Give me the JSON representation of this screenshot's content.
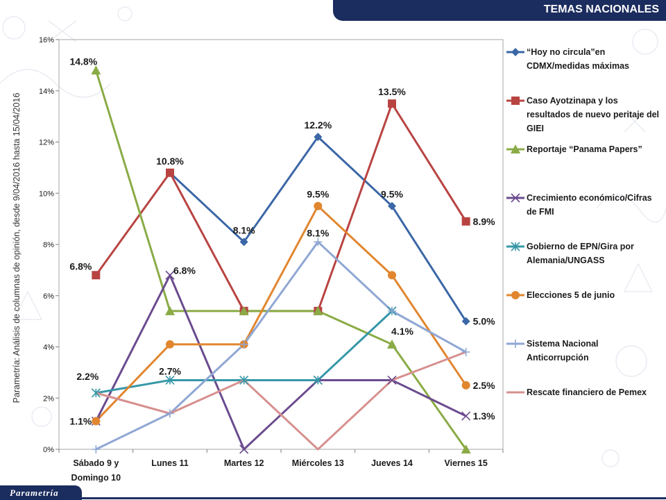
{
  "header": {
    "title": "TEMAS NACIONALES"
  },
  "side_note": "Parametría: Análisis de columnas de opinión, desde 9/04/2016 hasta 15/04/2016",
  "footer": {
    "logo_text": "Parametría"
  },
  "colors": {
    "header_bg": "#1b2c5e"
  },
  "chart_data": {
    "type": "line",
    "title": "",
    "xlabel": "",
    "ylabel": "",
    "ylim": [
      0,
      16
    ],
    "y_ticks": [
      "0%",
      "2%",
      "4%",
      "6%",
      "8%",
      "10%",
      "12%",
      "14%",
      "16%"
    ],
    "grid": false,
    "legend_placement": "right",
    "categories": [
      "Sábado 9 y Domingo 10",
      "Lunes 11",
      "Martes 12",
      "Miércoles 13",
      "Jueves 14",
      "Viernes 15"
    ],
    "series": [
      {
        "name": "“Hoy no circula”en CDMX/medidas máximas",
        "color": "#3b67a6",
        "marker": "diamond",
        "values": [
          null,
          10.8,
          8.1,
          12.2,
          9.5,
          5.0
        ],
        "labels": [
          "",
          "",
          "8.1%",
          "12.2%",
          "9.5%",
          "5.0%"
        ]
      },
      {
        "name": "Caso Ayotzinapa y los resultados de nuevo peritaje del GIEI",
        "color": "#b84442",
        "marker": "square",
        "values": [
          6.8,
          10.8,
          5.4,
          5.4,
          13.5,
          8.9
        ],
        "labels": [
          "6.8%",
          "10.8%",
          "",
          "",
          "13.5%",
          "8.9%"
        ]
      },
      {
        "name": "Reportaje “Panama Papers”",
        "color": "#8aab46",
        "marker": "triangle",
        "values": [
          14.8,
          5.4,
          5.4,
          5.4,
          4.1,
          0
        ],
        "labels": [
          "14.8%",
          "",
          "",
          "",
          "4.1%",
          ""
        ]
      },
      {
        "name": "Crecimiento económico/Cifras de FMI",
        "color": "#6b4b8e",
        "marker": "x",
        "values": [
          1.1,
          6.8,
          0,
          2.7,
          2.7,
          1.3
        ],
        "labels": [
          "",
          "6.8%",
          "",
          "",
          "",
          "1.3%"
        ]
      },
      {
        "name": "Gobierno de EPN/Gira por Alemania/UNGASS",
        "color": "#3597a8",
        "marker": "star",
        "values": [
          2.2,
          2.7,
          2.7,
          2.7,
          5.4,
          null
        ],
        "labels": [
          "2.2%",
          "2.7%",
          "",
          "",
          "",
          ""
        ]
      },
      {
        "name": "Elecciones 5 de junio",
        "color": "#e1862f",
        "marker": "circle",
        "values": [
          1.1,
          4.1,
          4.1,
          9.5,
          6.8,
          2.5
        ],
        "labels": [
          "1.1%",
          "",
          "",
          "9.5%",
          "",
          "2.5%"
        ]
      },
      {
        "name": "Sistema Nacional Anticorrupción",
        "color": "#8fa7d4",
        "marker": "plus",
        "values": [
          0,
          1.4,
          4.1,
          8.1,
          5.4,
          3.8
        ],
        "labels": [
          "",
          "",
          "",
          "8.1%",
          "",
          ""
        ]
      },
      {
        "name": "Rescate financiero de Pemex",
        "color": "#d6908e",
        "marker": "none",
        "values": [
          2.2,
          1.4,
          2.7,
          0,
          2.7,
          3.8
        ],
        "labels": [
          "",
          "",
          "",
          "",
          "",
          ""
        ]
      }
    ]
  }
}
